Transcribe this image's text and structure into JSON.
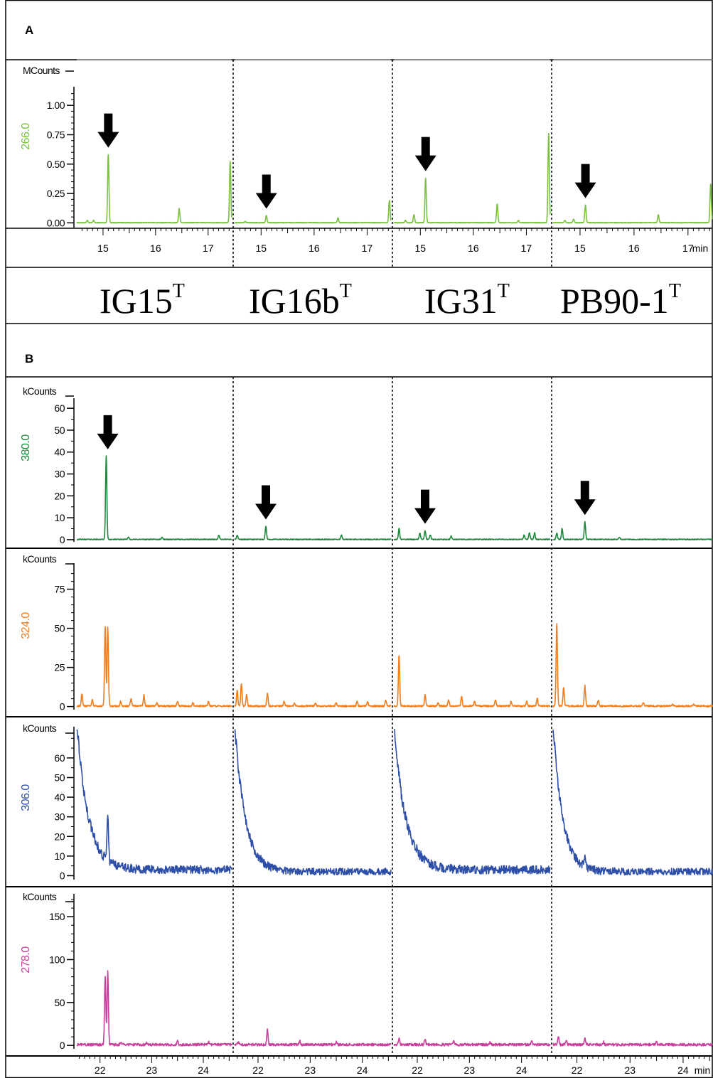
{
  "panel_a": {
    "letter": "A",
    "unit": "MCounts",
    "y_ticks": [
      "1.00",
      "0.75",
      "0.50",
      "0.25",
      "0.00"
    ],
    "x_ticks": [
      "15",
      "16",
      "17"
    ],
    "x_unit": "min"
  },
  "strains": [
    {
      "name": "IG15",
      "superscript": "T"
    },
    {
      "name": "IG16b",
      "superscript": "T"
    },
    {
      "name": "IG31",
      "superscript": "T"
    },
    {
      "name": "PB90-1",
      "superscript": "T"
    }
  ],
  "panel_b": {
    "letter": "B",
    "x_ticks": [
      "22",
      "23",
      "24"
    ],
    "x_unit": "min"
  },
  "colors": {
    "266": "#7ac142",
    "380": "#1a8a3a",
    "324": "#f07d1e",
    "306": "#2e4fa8",
    "278": "#c8409c"
  },
  "chart_data": [
    {
      "type": "line",
      "panel": "A",
      "trace_label": "266.0",
      "unit": "MCounts",
      "x_unit": "min",
      "xlim": [
        14.5,
        17.45
      ],
      "ylim": [
        -0.04,
        1.19
      ],
      "y_ticks": [
        0,
        0.25,
        0.5,
        0.75,
        1.0
      ],
      "x_ticks": [
        15,
        16,
        17
      ],
      "peaks_by_strain": [
        [
          [
            14.7,
            0.02
          ],
          [
            14.82,
            0.02
          ],
          [
            15.1,
            0.58
          ],
          [
            16.45,
            0.12
          ],
          [
            17.42,
            0.52
          ]
        ],
        [
          [
            14.7,
            0.01
          ],
          [
            15.1,
            0.06
          ],
          [
            16.45,
            0.04
          ],
          [
            17.42,
            0.19
          ]
        ],
        [
          [
            14.72,
            0.02
          ],
          [
            14.88,
            0.07
          ],
          [
            15.1,
            0.38
          ],
          [
            16.45,
            0.16
          ],
          [
            16.85,
            0.02
          ],
          [
            17.42,
            0.76
          ]
        ],
        [
          [
            14.72,
            0.02
          ],
          [
            14.88,
            0.03
          ],
          [
            15.1,
            0.15
          ],
          [
            16.45,
            0.07
          ],
          [
            17.42,
            0.33
          ]
        ]
      ],
      "arrows_by_strain": [
        15.1,
        15.1,
        15.1,
        15.1
      ]
    },
    {
      "type": "line",
      "panel": "B",
      "trace_label": "380.0",
      "unit": "kCounts",
      "x_unit": "min",
      "xlim": [
        21.55,
        24.55
      ],
      "ylim": [
        -1,
        67
      ],
      "y_ticks": [
        0,
        10,
        20,
        30,
        40,
        50,
        60
      ],
      "peaks_by_strain": [
        [
          [
            22.12,
            38
          ],
          [
            22.55,
            1
          ],
          [
            23.2,
            1
          ],
          [
            24.3,
            2
          ]
        ],
        [
          [
            21.6,
            2
          ],
          [
            22.15,
            6
          ],
          [
            23.6,
            2
          ]
        ],
        [
          [
            21.65,
            5
          ],
          [
            22.05,
            3
          ],
          [
            22.15,
            4
          ],
          [
            22.25,
            2
          ],
          [
            22.65,
            1.5
          ],
          [
            24.05,
            2
          ],
          [
            24.15,
            3
          ],
          [
            24.25,
            3
          ]
        ],
        [
          [
            21.62,
            3
          ],
          [
            21.72,
            5
          ],
          [
            22.15,
            8
          ],
          [
            22.8,
            1
          ]
        ]
      ],
      "arrows_by_strain": [
        22.15,
        22.15,
        22.15,
        22.15
      ]
    },
    {
      "type": "line",
      "panel": "B",
      "trace_label": "324.0",
      "unit": "kCounts",
      "x_unit": "min",
      "xlim": [
        21.55,
        24.55
      ],
      "ylim": [
        -2,
        100
      ],
      "y_ticks": [
        0,
        25,
        50,
        75
      ],
      "peaks_by_strain": [
        [
          [
            21.65,
            8
          ],
          [
            21.85,
            4
          ],
          [
            22.1,
            51
          ],
          [
            22.15,
            51
          ],
          [
            22.4,
            3
          ],
          [
            22.6,
            5
          ],
          [
            22.85,
            7
          ],
          [
            23.1,
            2
          ],
          [
            23.5,
            3
          ],
          [
            23.8,
            2
          ],
          [
            24.1,
            3
          ]
        ],
        [
          [
            21.6,
            10
          ],
          [
            21.68,
            14
          ],
          [
            21.78,
            7
          ],
          [
            22.18,
            8
          ],
          [
            22.5,
            3
          ],
          [
            22.7,
            2
          ],
          [
            23.1,
            2
          ],
          [
            23.5,
            2
          ],
          [
            23.9,
            3
          ],
          [
            24.1,
            3
          ],
          [
            24.45,
            4
          ]
        ],
        [
          [
            21.65,
            33
          ],
          [
            22.15,
            7
          ],
          [
            22.4,
            2
          ],
          [
            22.6,
            4
          ],
          [
            22.85,
            6
          ],
          [
            23.1,
            3
          ],
          [
            23.5,
            4
          ],
          [
            23.8,
            3
          ],
          [
            24.1,
            3
          ],
          [
            24.3,
            5
          ]
        ],
        [
          [
            21.62,
            53
          ],
          [
            21.75,
            12
          ],
          [
            22.15,
            13
          ],
          [
            22.4,
            4
          ],
          [
            23.25,
            2
          ],
          [
            23.8,
            1
          ],
          [
            24.2,
            1
          ]
        ]
      ]
    },
    {
      "type": "line",
      "panel": "B",
      "trace_label": "306.0",
      "unit": "kCounts",
      "x_unit": "min",
      "xlim": [
        21.55,
        24.55
      ],
      "ylim": [
        -2,
        76
      ],
      "y_ticks": [
        0,
        10,
        20,
        30,
        40,
        50,
        60
      ],
      "decay_by_strain": [
        {
          "start": 78,
          "floor": 3,
          "tau": 0.22,
          "bump_at": 22.15,
          "bump": 24,
          "noise": 3.5
        },
        {
          "start": 78,
          "floor": 2,
          "tau": 0.2,
          "bump_at": 22.15,
          "bump": 0,
          "noise": 3
        },
        {
          "start": 78,
          "floor": 3,
          "tau": 0.22,
          "bump_at": 22.15,
          "bump": 0,
          "noise": 3.5
        },
        {
          "start": 78,
          "floor": 2,
          "tau": 0.18,
          "bump_at": 22.15,
          "bump": 5,
          "noise": 3
        }
      ]
    },
    {
      "type": "line",
      "panel": "B",
      "trace_label": "278.0",
      "unit": "kCounts",
      "x_unit": "min",
      "xlim": [
        21.55,
        24.55
      ],
      "ylim": [
        -3,
        180
      ],
      "y_ticks": [
        0,
        50,
        100,
        150
      ],
      "peaks_by_strain": [
        [
          [
            22.1,
            80
          ],
          [
            22.15,
            85
          ],
          [
            22.4,
            3
          ],
          [
            22.9,
            3
          ],
          [
            23.5,
            4
          ],
          [
            24.1,
            3
          ]
        ],
        [
          [
            21.62,
            3
          ],
          [
            22.18,
            18
          ],
          [
            22.8,
            4
          ],
          [
            23.5,
            3
          ]
        ],
        [
          [
            21.65,
            8
          ],
          [
            22.15,
            7
          ],
          [
            22.7,
            4
          ],
          [
            23.4,
            3
          ],
          [
            24.2,
            4
          ]
        ],
        [
          [
            21.65,
            10
          ],
          [
            21.8,
            5
          ],
          [
            22.15,
            8
          ],
          [
            22.5,
            3
          ],
          [
            23.5,
            3
          ]
        ]
      ]
    }
  ]
}
